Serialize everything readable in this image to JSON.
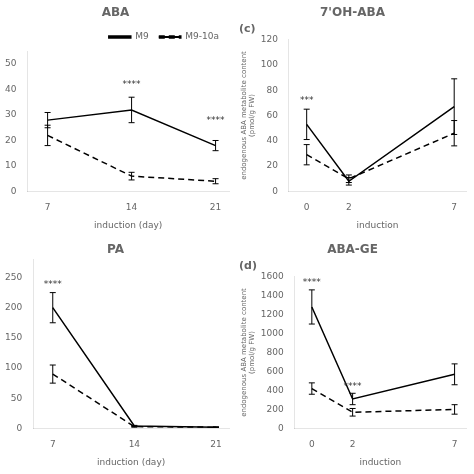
{
  "chart_data": [
    {
      "type": "line",
      "title": "ABA",
      "x_label": "induction (day)",
      "x": [
        7,
        14,
        21
      ],
      "xlim": [
        5.32,
        22.12
      ],
      "xticks": [
        7,
        14,
        21
      ],
      "ylim": [
        0,
        55
      ],
      "yticks": [
        0,
        10,
        20,
        30,
        40,
        50
      ],
      "grid": false,
      "legend": "upper right",
      "series": [
        {
          "name": "M9",
          "color": "#000000",
          "line_style": "solid",
          "values": [
            28,
            32,
            18
          ],
          "errors": [
            3,
            5,
            2
          ]
        },
        {
          "name": "M9-10a",
          "color": "#000000",
          "line_style": "dashed",
          "values": [
            22,
            6,
            4
          ],
          "errors": [
            4,
            1.5,
            1
          ]
        }
      ],
      "annotations": [
        {
          "x": 14,
          "y": 40,
          "text": "****"
        },
        {
          "x": 21,
          "y": 26,
          "text": "****"
        }
      ]
    },
    {
      "type": "line",
      "title": "PA",
      "x_label": "induction (day)",
      "x": [
        7,
        14,
        21
      ],
      "xlim": [
        5.32,
        22.12
      ],
      "xticks": [
        7,
        14,
        21
      ],
      "ylim": [
        0,
        280
      ],
      "yticks": [
        0,
        50,
        100,
        150,
        200,
        250
      ],
      "grid": false,
      "series": [
        {
          "color": "#000000",
          "line_style": "solid",
          "values": [
            200,
            4,
            2
          ],
          "errors": [
            25,
            1,
            0.5
          ]
        },
        {
          "color": "#000000",
          "line_style": "dashed",
          "values": [
            90,
            3,
            2
          ],
          "errors": [
            15,
            1,
            0.5
          ]
        }
      ],
      "annotations": [
        {
          "x": 7,
          "y": 230,
          "text": "****"
        }
      ]
    },
    {
      "type": "line",
      "title": "7'OH-ABA",
      "subtitle": "(c)",
      "x_label": "induction",
      "y_label": "endogenous ABA metabolite content\n(pmol/g FW)",
      "x": [
        0,
        2,
        7
      ],
      "xlim": [
        -0.84,
        7.56
      ],
      "xticks": [
        0,
        2,
        7
      ],
      "ylim": [
        0,
        120
      ],
      "yticks": [
        0,
        20,
        40,
        60,
        80,
        100,
        120
      ],
      "grid": false,
      "series": [
        {
          "color": "#000000",
          "line_style": "solid",
          "values": [
            53,
            8,
            67
          ],
          "errors": [
            12,
            3,
            22
          ]
        },
        {
          "color": "#000000",
          "line_style": "dashed",
          "values": [
            29,
            10,
            46
          ],
          "errors": [
            8,
            3,
            10
          ]
        }
      ],
      "annotations": [
        {
          "x": 0,
          "y": 68,
          "text": "***"
        }
      ]
    },
    {
      "type": "line",
      "title": "ABA-GE",
      "subtitle": "(d)",
      "x_label": "induction",
      "y_label": "endogenous ABA metabolite content\n(pmol/g FW)",
      "x": [
        0,
        2,
        7
      ],
      "xlim": [
        -0.84,
        7.56
      ],
      "xticks": [
        0,
        2,
        7
      ],
      "ylim": [
        0,
        1600
      ],
      "yticks": [
        0,
        200,
        400,
        600,
        800,
        1000,
        1200,
        1400,
        1600
      ],
      "grid": false,
      "series": [
        {
          "color": "#000000",
          "line_style": "solid",
          "values": [
            1280,
            310,
            570
          ],
          "errors": [
            180,
            60,
            110
          ]
        },
        {
          "color": "#000000",
          "line_style": "dashed",
          "values": [
            420,
            170,
            200
          ],
          "errors": [
            60,
            40,
            50
          ]
        }
      ],
      "annotations": [
        {
          "x": 0,
          "y": 1490,
          "text": "****"
        },
        {
          "x": 2,
          "y": 390,
          "text": "****"
        }
      ]
    }
  ]
}
